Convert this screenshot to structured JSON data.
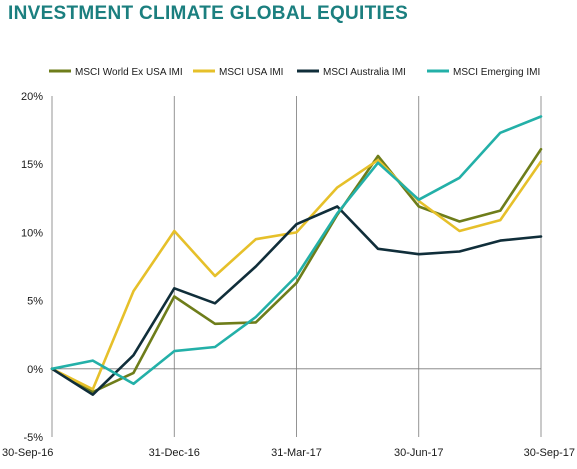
{
  "title": "INVESTMENT CLIMATE GLOBAL EQUITIES",
  "title_color": "#1b7f7f",
  "chart_data": {
    "type": "line",
    "title": "INVESTMENT CLIMATE GLOBAL EQUITIES",
    "xlabel": "",
    "ylabel": "",
    "x": [
      "30-Sep-16",
      "31-Oct-16",
      "30-Nov-16",
      "31-Dec-16",
      "31-Jan-17",
      "28-Feb-17",
      "31-Mar-17",
      "30-Apr-17",
      "31-May-17",
      "30-Jun-17",
      "31-Jul-17",
      "31-Aug-17",
      "30-Sep-17"
    ],
    "x_tick_labels": [
      "30-Sep-16",
      "31-Dec-16",
      "31-Mar-17",
      "30-Jun-17",
      "30-Sep-17"
    ],
    "x_tick_indices": [
      0,
      3,
      6,
      9,
      12
    ],
    "y_tick_labels": [
      "20%",
      "15%",
      "10%",
      "5%",
      "0%",
      "-5%"
    ],
    "y_tick_values": [
      20,
      15,
      10,
      5,
      0,
      -5
    ],
    "ylim": [
      -5,
      20
    ],
    "grid": "vertical",
    "legend_position": "top",
    "series": [
      {
        "name": "MSCI World Ex USA IMI",
        "color": "#6e7d1a",
        "values": [
          0,
          -1.7,
          -0.3,
          5.3,
          3.3,
          3.4,
          6.3,
          11.3,
          15.6,
          11.9,
          10.8,
          11.6,
          16.1
        ]
      },
      {
        "name": "MSCI USA IMI",
        "color": "#e6c02a",
        "values": [
          0,
          -1.5,
          5.7,
          10.1,
          6.8,
          9.5,
          10.0,
          13.3,
          15.3,
          12.3,
          10.1,
          10.9,
          15.2
        ]
      },
      {
        "name": "MSCI Australia IMI",
        "color": "#102e3a",
        "values": [
          0,
          -1.9,
          1.0,
          5.9,
          4.8,
          7.5,
          10.6,
          11.9,
          8.8,
          8.4,
          8.6,
          9.4,
          9.7
        ]
      },
      {
        "name": "MSCI Emerging IMI",
        "color": "#23b0a8",
        "values": [
          0,
          0.6,
          -1.1,
          1.3,
          1.6,
          3.8,
          6.8,
          11.4,
          15.1,
          12.4,
          14.0,
          17.3,
          18.5
        ]
      }
    ]
  }
}
